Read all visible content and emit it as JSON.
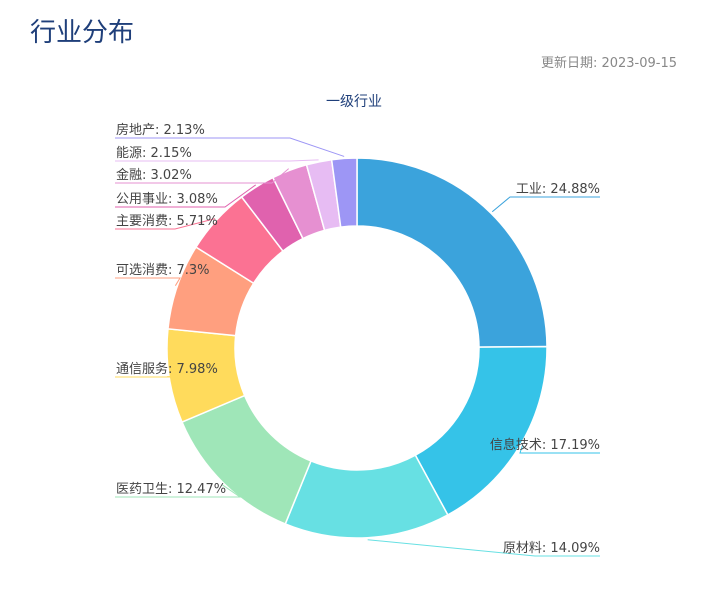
{
  "page": {
    "title": "行业分布",
    "update_date": "更新日期: 2023-09-15"
  },
  "chart_data": {
    "type": "pie",
    "variant": "donut",
    "title": "一级行业",
    "label_format": "{name}: {value}%",
    "slices": [
      {
        "name": "工业",
        "value": 24.88,
        "color": "#3ba3dc"
      },
      {
        "name": "信息技术",
        "value": 17.19,
        "color": "#35c3e8"
      },
      {
        "name": "原材料",
        "value": 14.09,
        "color": "#67e0e3"
      },
      {
        "name": "医药卫生",
        "value": 12.47,
        "color": "#9fe6b8"
      },
      {
        "name": "通信服务",
        "value": 7.98,
        "color": "#ffdb5c"
      },
      {
        "name": "可选消费",
        "value": 7.3,
        "color": "#ff9f7f"
      },
      {
        "name": "主要消费",
        "value": 5.71,
        "color": "#fb7293"
      },
      {
        "name": "公用事业",
        "value": 3.08,
        "color": "#e062ae"
      },
      {
        "name": "金融",
        "value": 3.02,
        "color": "#e690d1"
      },
      {
        "name": "能源",
        "value": 2.15,
        "color": "#e7bcf3"
      },
      {
        "name": "房地产",
        "value": 2.13,
        "color": "#9d96f5"
      }
    ]
  }
}
